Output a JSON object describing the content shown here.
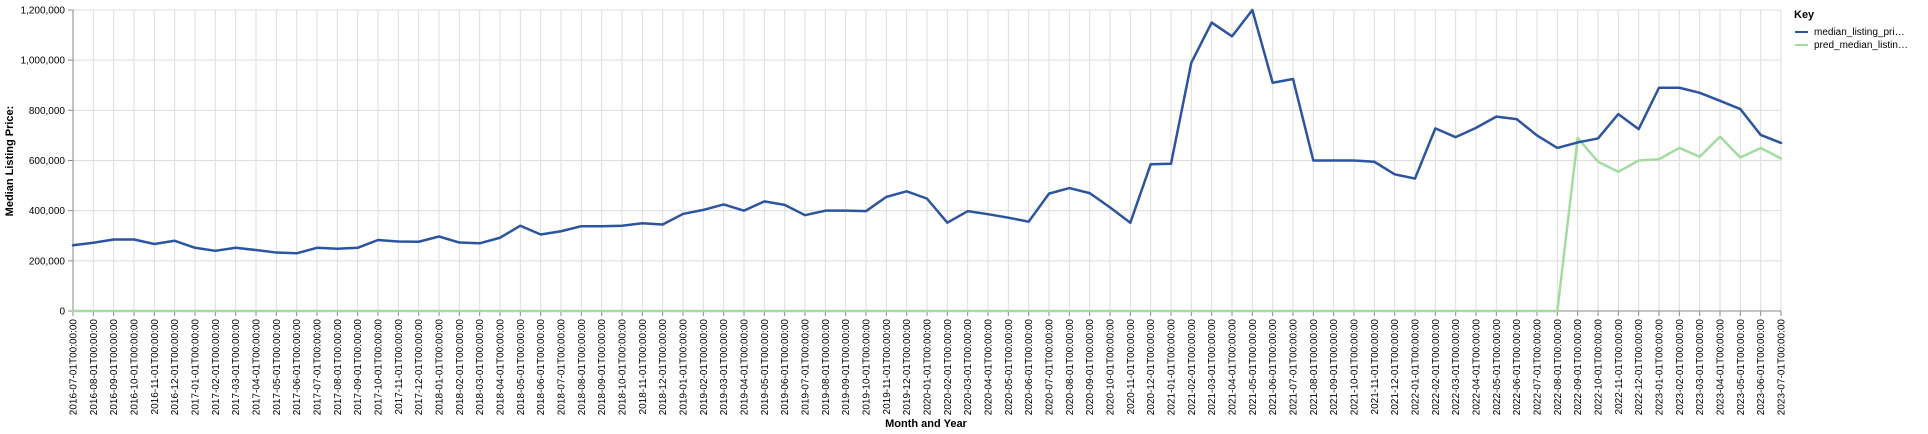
{
  "chart_data": {
    "type": "line",
    "title": "",
    "xlabel": "Month and Year",
    "ylabel": "Median Listing Price:",
    "ylim": [
      0,
      1200000
    ],
    "y_ticks": [
      0,
      200000,
      400000,
      600000,
      800000,
      1000000,
      1200000
    ],
    "y_tick_labels": [
      "0",
      "200,000",
      "400,000",
      "600,000",
      "800,000",
      "1,000,000",
      "1,200,000"
    ],
    "grid": true,
    "legend": {
      "title": "Key",
      "position": "top-right",
      "entries": [
        "median_listing_pri…",
        "pred_median_listin…"
      ]
    },
    "colors": {
      "median": "#2c54a0",
      "pred": "#a3dca0"
    },
    "categories": [
      "2016-07-01T00:00:00",
      "2016-08-01T00:00:00",
      "2016-09-01T00:00:00",
      "2016-10-01T00:00:00",
      "2016-11-01T00:00:00",
      "2016-12-01T00:00:00",
      "2017-01-01T00:00:00",
      "2017-02-01T00:00:00",
      "2017-03-01T00:00:00",
      "2017-04-01T00:00:00",
      "2017-05-01T00:00:00",
      "2017-06-01T00:00:00",
      "2017-07-01T00:00:00",
      "2017-08-01T00:00:00",
      "2017-09-01T00:00:00",
      "2017-10-01T00:00:00",
      "2017-11-01T00:00:00",
      "2017-12-01T00:00:00",
      "2018-01-01T00:00:00",
      "2018-02-01T00:00:00",
      "2018-03-01T00:00:00",
      "2018-04-01T00:00:00",
      "2018-05-01T00:00:00",
      "2018-06-01T00:00:00",
      "2018-07-01T00:00:00",
      "2018-08-01T00:00:00",
      "2018-09-01T00:00:00",
      "2018-10-01T00:00:00",
      "2018-11-01T00:00:00",
      "2018-12-01T00:00:00",
      "2019-01-01T00:00:00",
      "2019-02-01T00:00:00",
      "2019-03-01T00:00:00",
      "2019-04-01T00:00:00",
      "2019-05-01T00:00:00",
      "2019-06-01T00:00:00",
      "2019-07-01T00:00:00",
      "2019-08-01T00:00:00",
      "2019-09-01T00:00:00",
      "2019-10-01T00:00:00",
      "2019-11-01T00:00:00",
      "2019-12-01T00:00:00",
      "2020-01-01T00:00:00",
      "2020-02-01T00:00:00",
      "2020-03-01T00:00:00",
      "2020-04-01T00:00:00",
      "2020-05-01T00:00:00",
      "2020-06-01T00:00:00",
      "2020-07-01T00:00:00",
      "2020-08-01T00:00:00",
      "2020-09-01T00:00:00",
      "2020-10-01T00:00:00",
      "2020-11-01T00:00:00",
      "2020-12-01T00:00:00",
      "2021-01-01T00:00:00",
      "2021-02-01T00:00:00",
      "2021-03-01T00:00:00",
      "2021-04-01T00:00:00",
      "2021-05-01T00:00:00",
      "2021-06-01T00:00:00",
      "2021-07-01T00:00:00",
      "2021-08-01T00:00:00",
      "2021-09-01T00:00:00",
      "2021-10-01T00:00:00",
      "2021-11-01T00:00:00",
      "2021-12-01T00:00:00",
      "2022-01-01T00:00:00",
      "2022-02-01T00:00:00",
      "2022-03-01T00:00:00",
      "2022-04-01T00:00:00",
      "2022-05-01T00:00:00",
      "2022-06-01T00:00:00",
      "2022-07-01T00:00:00",
      "2022-08-01T00:00:00",
      "2022-09-01T00:00:00",
      "2022-10-01T00:00:00",
      "2022-11-01T00:00:00",
      "2022-12-01T00:00:00",
      "2023-01-01T00:00:00",
      "2023-02-01T00:00:00",
      "2023-03-01T00:00:00",
      "2023-04-01T00:00:00",
      "2023-05-01T00:00:00",
      "2023-06-01T00:00:00",
      "2023-07-01T00:00:00"
    ],
    "series": [
      {
        "name": "median_listing_pri…",
        "values": [
          262000,
          272000,
          285000,
          285000,
          267000,
          280000,
          252000,
          240000,
          252000,
          243000,
          233000,
          230000,
          252000,
          248000,
          252000,
          283000,
          277000,
          276000,
          297000,
          273000,
          270000,
          292000,
          340000,
          305000,
          318000,
          338000,
          338000,
          340000,
          350000,
          345000,
          387000,
          403000,
          425000,
          400000,
          437000,
          423000,
          382000,
          400000,
          400000,
          398000,
          455000,
          477000,
          448000,
          352000,
          398000,
          386000,
          372000,
          356000,
          468000,
          490000,
          470000,
          413000,
          352000,
          585000,
          587000,
          990000,
          1150000,
          1095000,
          1200000,
          910000,
          925000,
          600000,
          600000,
          600000,
          595000,
          545000,
          528000,
          728000,
          693000,
          730000,
          775000,
          765000,
          700000,
          650000,
          672000,
          688000,
          785000,
          725000,
          890000,
          890000,
          870000,
          838000,
          805000,
          702000,
          670000
        ]
      },
      {
        "name": "pred_median_listin…",
        "values": [
          0,
          0,
          0,
          0,
          0,
          0,
          0,
          0,
          0,
          0,
          0,
          0,
          0,
          0,
          0,
          0,
          0,
          0,
          0,
          0,
          0,
          0,
          0,
          0,
          0,
          0,
          0,
          0,
          0,
          0,
          0,
          0,
          0,
          0,
          0,
          0,
          0,
          0,
          0,
          0,
          0,
          0,
          0,
          0,
          0,
          0,
          0,
          0,
          0,
          0,
          0,
          0,
          0,
          0,
          0,
          0,
          0,
          0,
          0,
          0,
          0,
          0,
          0,
          0,
          0,
          0,
          0,
          0,
          0,
          0,
          0,
          0,
          0,
          0,
          690000,
          595000,
          555000,
          600000,
          605000,
          650000,
          615000,
          695000,
          612000,
          650000,
          608000
        ]
      }
    ]
  }
}
